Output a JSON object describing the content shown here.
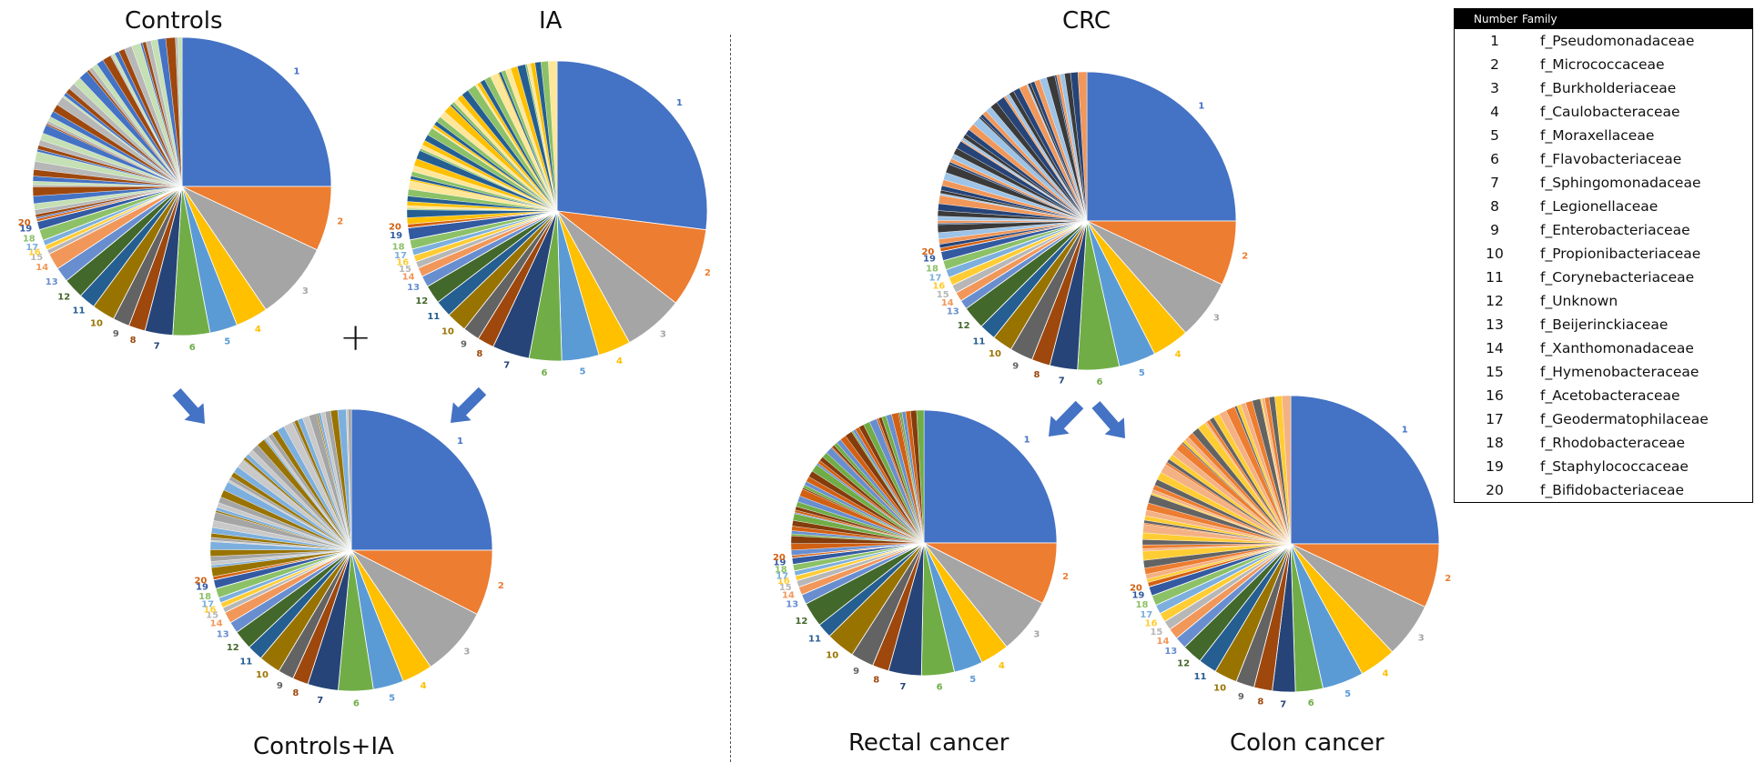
{
  "titles": {
    "controls": "Controls",
    "ia": "IA",
    "crc": "CRC",
    "controls_ia": "Controls+IA",
    "rectal": "Rectal cancer",
    "colon": "Colon cancer",
    "plus": "+"
  },
  "legend": {
    "header_number": "Number",
    "header_family": "Family",
    "rows": [
      {
        "number": "1",
        "family": "f_Pseudomonadaceae"
      },
      {
        "number": "2",
        "family": "f_Micrococcaceae"
      },
      {
        "number": "3",
        "family": "f_Burkholderiaceae"
      },
      {
        "number": "4",
        "family": "f_Caulobacteraceae"
      },
      {
        "number": "5",
        "family": "f_Moraxellaceae"
      },
      {
        "number": "6",
        "family": "f_Flavobacteriaceae"
      },
      {
        "number": "7",
        "family": "f_Sphingomonadaceae"
      },
      {
        "number": "8",
        "family": "f_Legionellaceae"
      },
      {
        "number": "9",
        "family": "f_Enterobacteriaceae"
      },
      {
        "number": "10",
        "family": "f_Propionibacteriaceae"
      },
      {
        "number": "11",
        "family": "f_Corynebacteriaceae"
      },
      {
        "number": "12",
        "family": "f_Unknown"
      },
      {
        "number": "13",
        "family": "f_Beijerinckiaceae"
      },
      {
        "number": "14",
        "family": "f_Xanthomonadaceae"
      },
      {
        "number": "15",
        "family": "f_Hymenobacteraceae"
      },
      {
        "number": "16",
        "family": "f_Acetobacteraceae"
      },
      {
        "number": "17",
        "family": "f_Geodermatophilaceae"
      },
      {
        "number": "18",
        "family": "f_Rhodobacteraceae"
      },
      {
        "number": "19",
        "family": "f_Staphylococcaceae"
      },
      {
        "number": "20",
        "family": "f_Bifidobacteriaceae"
      }
    ]
  },
  "colors": {
    "slices": [
      "#4472C4",
      "#ED7D31",
      "#A5A5A5",
      "#FFC000",
      "#5B9BD5",
      "#70AD47",
      "#264478",
      "#9E480E",
      "#636363",
      "#997300",
      "#255E91",
      "#43682B",
      "#698ED0",
      "#F1975A",
      "#B7B7B7",
      "#FFCD33",
      "#7CAFDD",
      "#8CC168",
      "#335AA1",
      "#D26012"
    ],
    "tail": [
      "#4472C4",
      "#ED7D31",
      "#A5A5A5",
      "#FFC000",
      "#5B9BD5",
      "#70AD47",
      "#264478",
      "#9E480E",
      "#636363",
      "#997300",
      "#255E91",
      "#43682B",
      "#698ED0",
      "#F1975A",
      "#B7B7B7",
      "#FFCD33",
      "#7CAFDD",
      "#8CC168",
      "#335AA1",
      "#D26012",
      "#9DC3E6",
      "#C5E0B4",
      "#F4B183",
      "#C9C9C9",
      "#FFE699",
      "#203864",
      "#843C0C",
      "#3A3A3A"
    ],
    "arrow": "#4472C4"
  },
  "chart_data": [
    {
      "type": "pie",
      "title": "Controls",
      "categories": [
        "1",
        "2",
        "3",
        "4",
        "5",
        "6",
        "7",
        "8",
        "9",
        "10",
        "11",
        "12",
        "13",
        "14",
        "15",
        "16",
        "17",
        "18",
        "19",
        "20"
      ],
      "values": [
        25.0,
        7.0,
        8.5,
        3.5,
        3.0,
        4.0,
        3.0,
        1.8,
        1.8,
        2.5,
        1.8,
        2.2,
        1.6,
        1.8,
        0.5,
        0.5,
        0.6,
        1.2,
        0.9,
        0.3
      ],
      "other_slices": 48
    },
    {
      "type": "pie",
      "title": "IA",
      "categories": [
        "1",
        "2",
        "3",
        "4",
        "5",
        "6",
        "7",
        "8",
        "9",
        "10",
        "11",
        "12",
        "13",
        "14",
        "15",
        "16",
        "17",
        "18",
        "19",
        "20"
      ],
      "values": [
        27.0,
        8.5,
        6.5,
        3.5,
        4.0,
        3.5,
        4.0,
        1.8,
        1.8,
        2.2,
        1.8,
        2.0,
        1.2,
        1.0,
        0.7,
        0.7,
        0.7,
        1.0,
        1.3,
        0.4
      ],
      "other_slices": 48
    },
    {
      "type": "pie",
      "title": "CRC",
      "categories": [
        "1",
        "2",
        "3",
        "4",
        "5",
        "6",
        "7",
        "8",
        "9",
        "10",
        "11",
        "12",
        "13",
        "14",
        "15",
        "16",
        "17",
        "18",
        "19",
        "20"
      ],
      "values": [
        25.0,
        7.0,
        6.5,
        4.0,
        4.0,
        4.5,
        3.0,
        2.0,
        2.5,
        2.2,
        1.8,
        2.5,
        1.0,
        1.0,
        0.9,
        0.9,
        0.9,
        1.0,
        1.0,
        0.4
      ],
      "other_slices": 50
    },
    {
      "type": "pie",
      "title": "Controls+IA",
      "categories": [
        "1",
        "2",
        "3",
        "4",
        "5",
        "6",
        "7",
        "8",
        "9",
        "10",
        "11",
        "12",
        "13",
        "14",
        "15",
        "16",
        "17",
        "18",
        "19",
        "20"
      ],
      "values": [
        25.0,
        7.5,
        8.0,
        3.5,
        3.5,
        4.0,
        3.5,
        1.8,
        1.8,
        2.5,
        1.8,
        2.2,
        1.3,
        1.3,
        0.6,
        0.6,
        0.6,
        1.1,
        1.0,
        0.4
      ],
      "other_slices": 48
    },
    {
      "type": "pie",
      "title": "Rectal cancer",
      "categories": [
        "1",
        "2",
        "3",
        "4",
        "5",
        "6",
        "7",
        "8",
        "9",
        "10",
        "11",
        "12",
        "13",
        "14",
        "15",
        "16",
        "17",
        "18",
        "19",
        "20"
      ],
      "values": [
        25.0,
        7.5,
        6.8,
        3.5,
        3.5,
        4.0,
        4.0,
        2.0,
        2.8,
        3.5,
        1.8,
        3.0,
        1.2,
        1.0,
        0.8,
        0.6,
        0.6,
        0.8,
        0.8,
        0.3
      ],
      "other_slices": 48
    },
    {
      "type": "pie",
      "title": "Colon cancer",
      "categories": [
        "1",
        "2",
        "3",
        "4",
        "5",
        "6",
        "7",
        "8",
        "9",
        "10",
        "11",
        "12",
        "13",
        "14",
        "15",
        "16",
        "17",
        "18",
        "19",
        "20"
      ],
      "values": [
        25.0,
        7.0,
        6.0,
        4.0,
        4.5,
        3.0,
        2.5,
        2.0,
        2.0,
        2.5,
        2.0,
        2.2,
        1.3,
        1.2,
        1.0,
        1.0,
        1.0,
        1.1,
        1.0,
        0.5
      ],
      "other_slices": 50
    }
  ]
}
